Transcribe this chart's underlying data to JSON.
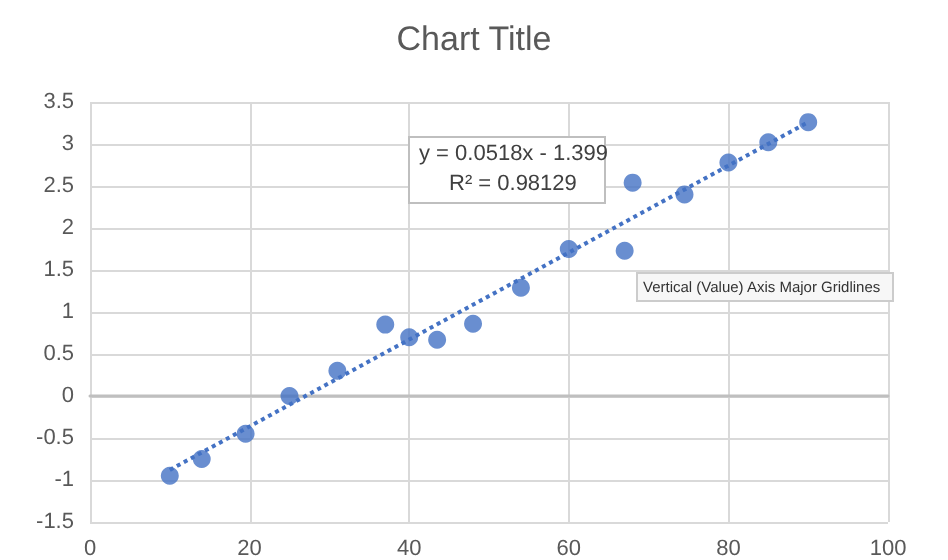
{
  "chart_data": {
    "type": "scatter",
    "title": "Chart Title",
    "series": [
      {
        "color": "#4472c4",
        "marker": "circle",
        "x": [
          10,
          14,
          19.5,
          25,
          31,
          37,
          40,
          43.5,
          48,
          54,
          60,
          67,
          68,
          74.5,
          80,
          85,
          90
        ],
        "values": [
          -0.95,
          -0.75,
          -0.45,
          0,
          0.3,
          0.85,
          0.7,
          0.67,
          0.86,
          1.29,
          1.75,
          1.73,
          2.54,
          2.4,
          2.78,
          3.02,
          3.26
        ]
      },
      {
        "type": "line",
        "color": "#4472c4",
        "line_style": "dotted",
        "marker": "none",
        "x": [
          10,
          90
        ],
        "values": [
          -0.88,
          3.26
        ]
      }
    ],
    "xlim": [
      0,
      100
    ],
    "xticks": [
      0,
      20,
      40,
      60,
      80,
      100
    ],
    "ylim": [
      -1.5,
      3.5
    ],
    "yticks": [
      -1.5,
      -1,
      -0.5,
      0,
      0.5,
      1,
      1.5,
      2,
      2.5,
      3,
      3.5
    ],
    "grid": true,
    "annotations": [
      "y = 0.0518x - 1.399",
      "R² = 0.98129",
      "Vertical (Value) Axis Major Gridlines"
    ]
  }
}
